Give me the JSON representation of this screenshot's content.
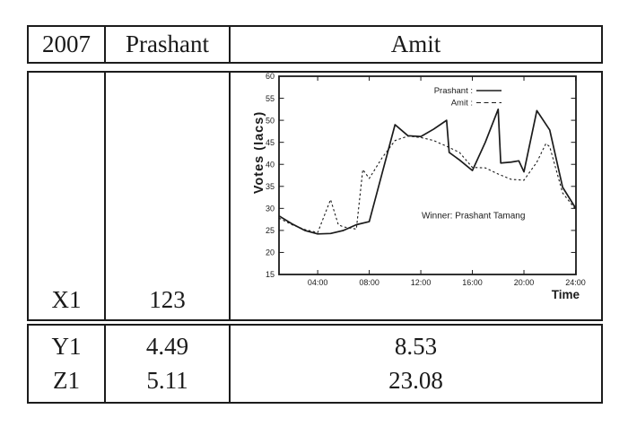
{
  "table": {
    "header": {
      "col1": "2007",
      "col2": "Prashant",
      "col3": "Amit"
    },
    "body_row": {
      "col1": "X1",
      "col2": "123"
    },
    "footer_rows": [
      {
        "col1": "Y1",
        "col2": "4.49",
        "col3": "8.53"
      },
      {
        "col1": "Z1",
        "col2": "5.11",
        "col3": "23.08"
      }
    ]
  },
  "chart_data": {
    "type": "line",
    "title": "",
    "xlabel": "Time",
    "ylabel": "Votes (lacs)",
    "x_unit": "hour of day (01:00 - 24:00)",
    "xlim": [
      1,
      24
    ],
    "ylim": [
      15,
      60
    ],
    "y_ticks": [
      15,
      20,
      25,
      30,
      35,
      40,
      45,
      50,
      55,
      60
    ],
    "x_tick_hours": [
      4,
      8,
      12,
      16,
      20,
      24
    ],
    "x_tick_labels": [
      "04:00",
      "08:00",
      "12:00",
      "16:00",
      "20:00",
      "24:00"
    ],
    "grid": false,
    "legend_position": "top-right",
    "legend_labels": [
      "Prashant :",
      "Amit :"
    ],
    "annotation": "Winner: Prashant Tamang",
    "series": [
      {
        "name": "Prashant",
        "style": "solid",
        "points": [
          [
            1,
            28.3
          ],
          [
            2,
            26.5
          ],
          [
            3,
            25.0
          ],
          [
            4,
            24.2
          ],
          [
            5,
            24.3
          ],
          [
            6,
            25.0
          ],
          [
            7,
            26.3
          ],
          [
            8,
            27.0
          ],
          [
            9,
            38.0
          ],
          [
            10,
            49.0
          ],
          [
            11,
            46.5
          ],
          [
            12,
            46.3
          ],
          [
            13,
            48.0
          ],
          [
            14,
            50.0
          ],
          [
            14.2,
            42.7
          ],
          [
            15,
            41.0
          ],
          [
            16,
            38.6
          ],
          [
            17,
            45.0
          ],
          [
            18,
            52.5
          ],
          [
            18.2,
            40.3
          ],
          [
            19,
            40.5
          ],
          [
            19.6,
            40.8
          ],
          [
            20,
            38.3
          ],
          [
            21,
            52.2
          ],
          [
            22,
            47.8
          ],
          [
            23,
            34.8
          ],
          [
            24,
            30.1
          ]
        ]
      },
      {
        "name": "Amit",
        "style": "dashed",
        "points": [
          [
            1,
            27.8
          ],
          [
            2,
            26.3
          ],
          [
            3,
            25.2
          ],
          [
            4,
            24.5
          ],
          [
            5,
            32.0
          ],
          [
            5.6,
            26.3
          ],
          [
            6,
            25.8
          ],
          [
            7,
            25.3
          ],
          [
            7.5,
            38.8
          ],
          [
            8,
            36.8
          ],
          [
            9,
            41.5
          ],
          [
            10,
            45.4
          ],
          [
            11,
            46.4
          ],
          [
            12,
            46.1
          ],
          [
            13,
            45.4
          ],
          [
            14,
            44.1
          ],
          [
            15,
            42.7
          ],
          [
            16,
            39.3
          ],
          [
            17,
            39.2
          ],
          [
            18,
            37.8
          ],
          [
            19,
            36.6
          ],
          [
            20,
            36.4
          ],
          [
            21,
            40.5
          ],
          [
            21.7,
            44.7
          ],
          [
            22,
            44.0
          ],
          [
            23,
            33.5
          ],
          [
            24,
            29.8
          ]
        ]
      }
    ]
  }
}
